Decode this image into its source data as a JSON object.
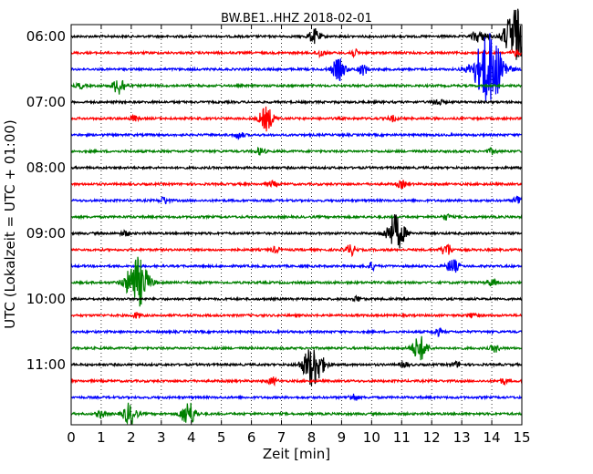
{
  "chart_data": {
    "type": "line",
    "title": "BW.BE1..HHZ 2018-02-01",
    "xlabel": "Zeit  [min]",
    "ylabel": "UTC (Lokalzeit = UTC + 01:00)",
    "xlim": [
      0,
      15
    ],
    "x_ticks": [
      "0",
      "1",
      "2",
      "3",
      "4",
      "5",
      "6",
      "7",
      "8",
      "9",
      "10",
      "11",
      "12",
      "13",
      "14",
      "15"
    ],
    "y_tick_labels": [
      {
        "trace_index": 0,
        "label": "06:00"
      },
      {
        "trace_index": 4,
        "label": "07:00"
      },
      {
        "trace_index": 8,
        "label": "08:00"
      },
      {
        "trace_index": 12,
        "label": "09:00"
      },
      {
        "trace_index": 16,
        "label": "10:00"
      },
      {
        "trace_index": 20,
        "label": "11:00"
      }
    ],
    "grid": "vertical dotted lines at each minute",
    "colors": [
      "#000000",
      "#ff0000",
      "#0000ff",
      "#008000"
    ],
    "traces": [
      {
        "start": "06:00",
        "color": "#000000",
        "events": [
          {
            "t": 8.1,
            "amp": 8
          },
          {
            "t": 13.5,
            "amp": 6
          },
          {
            "t": 13.8,
            "amp": 4
          },
          {
            "t": 14.7,
            "amp": 22
          },
          {
            "t": 14.85,
            "amp": 14
          }
        ]
      },
      {
        "start": "06:15",
        "color": "#ff0000",
        "events": [
          {
            "t": 8.3,
            "amp": 4
          },
          {
            "t": 9.4,
            "amp": 4
          },
          {
            "t": 14.8,
            "amp": 3
          }
        ]
      },
      {
        "start": "06:30",
        "color": "#0000ff",
        "events": [
          {
            "t": 8.9,
            "amp": 12
          },
          {
            "t": 9.7,
            "amp": 6
          },
          {
            "t": 13.9,
            "amp": 40
          }
        ]
      },
      {
        "start": "06:45",
        "color": "#008000",
        "events": [
          {
            "t": 1.6,
            "amp": 10
          },
          {
            "t": 0.3,
            "amp": 3
          }
        ]
      },
      {
        "start": "07:00",
        "color": "#000000",
        "events": [
          {
            "t": 12.2,
            "amp": 4
          }
        ]
      },
      {
        "start": "07:15",
        "color": "#ff0000",
        "events": [
          {
            "t": 6.5,
            "amp": 13
          },
          {
            "t": 2.1,
            "amp": 3
          },
          {
            "t": 10.7,
            "amp": 3
          }
        ]
      },
      {
        "start": "07:30",
        "color": "#0000ff",
        "events": [
          {
            "t": 5.6,
            "amp": 4
          }
        ]
      },
      {
        "start": "07:45",
        "color": "#008000",
        "events": [
          {
            "t": 6.3,
            "amp": 4
          },
          {
            "t": 14.0,
            "amp": 3
          }
        ]
      },
      {
        "start": "08:00",
        "color": "#000000",
        "events": []
      },
      {
        "start": "08:15",
        "color": "#ff0000",
        "events": [
          {
            "t": 6.7,
            "amp": 3
          },
          {
            "t": 11.0,
            "amp": 4
          }
        ]
      },
      {
        "start": "08:30",
        "color": "#0000ff",
        "events": [
          {
            "t": 3.1,
            "amp": 4
          },
          {
            "t": 14.9,
            "amp": 6
          }
        ]
      },
      {
        "start": "08:45",
        "color": "#008000",
        "events": [
          {
            "t": 12.5,
            "amp": 3
          }
        ]
      },
      {
        "start": "09:00",
        "color": "#000000",
        "events": [
          {
            "t": 10.8,
            "amp": 20
          },
          {
            "t": 1.8,
            "amp": 3
          }
        ]
      },
      {
        "start": "09:15",
        "color": "#ff0000",
        "events": [
          {
            "t": 9.3,
            "amp": 6
          },
          {
            "t": 12.5,
            "amp": 7
          },
          {
            "t": 6.8,
            "amp": 3
          }
        ]
      },
      {
        "start": "09:30",
        "color": "#0000ff",
        "events": [
          {
            "t": 12.7,
            "amp": 8
          },
          {
            "t": 10.0,
            "amp": 4
          }
        ]
      },
      {
        "start": "09:45",
        "color": "#008000",
        "events": [
          {
            "t": 2.2,
            "amp": 28
          },
          {
            "t": 14.0,
            "amp": 4
          }
        ]
      },
      {
        "start": "10:00",
        "color": "#000000",
        "events": [
          {
            "t": 9.5,
            "amp": 3
          }
        ]
      },
      {
        "start": "10:15",
        "color": "#ff0000",
        "events": [
          {
            "t": 2.2,
            "amp": 3
          },
          {
            "t": 13.4,
            "amp": 3
          }
        ]
      },
      {
        "start": "10:30",
        "color": "#0000ff",
        "events": [
          {
            "t": 12.2,
            "amp": 4
          }
        ]
      },
      {
        "start": "10:45",
        "color": "#008000",
        "events": [
          {
            "t": 11.6,
            "amp": 14
          },
          {
            "t": 14.1,
            "amp": 4
          }
        ]
      },
      {
        "start": "11:00",
        "color": "#000000",
        "events": [
          {
            "t": 8.05,
            "amp": 24
          },
          {
            "t": 11.1,
            "amp": 3
          },
          {
            "t": 12.8,
            "amp": 3
          }
        ]
      },
      {
        "start": "11:15",
        "color": "#ff0000",
        "events": [
          {
            "t": 6.7,
            "amp": 4
          },
          {
            "t": 14.4,
            "amp": 3
          }
        ]
      },
      {
        "start": "11:30",
        "color": "#0000ff",
        "events": [
          {
            "t": 9.4,
            "amp": 4
          }
        ]
      },
      {
        "start": "11:45",
        "color": "#008000",
        "events": [
          {
            "t": 1.95,
            "amp": 12
          },
          {
            "t": 3.9,
            "amp": 14
          },
          {
            "t": 1.0,
            "amp": 4
          }
        ]
      }
    ]
  }
}
